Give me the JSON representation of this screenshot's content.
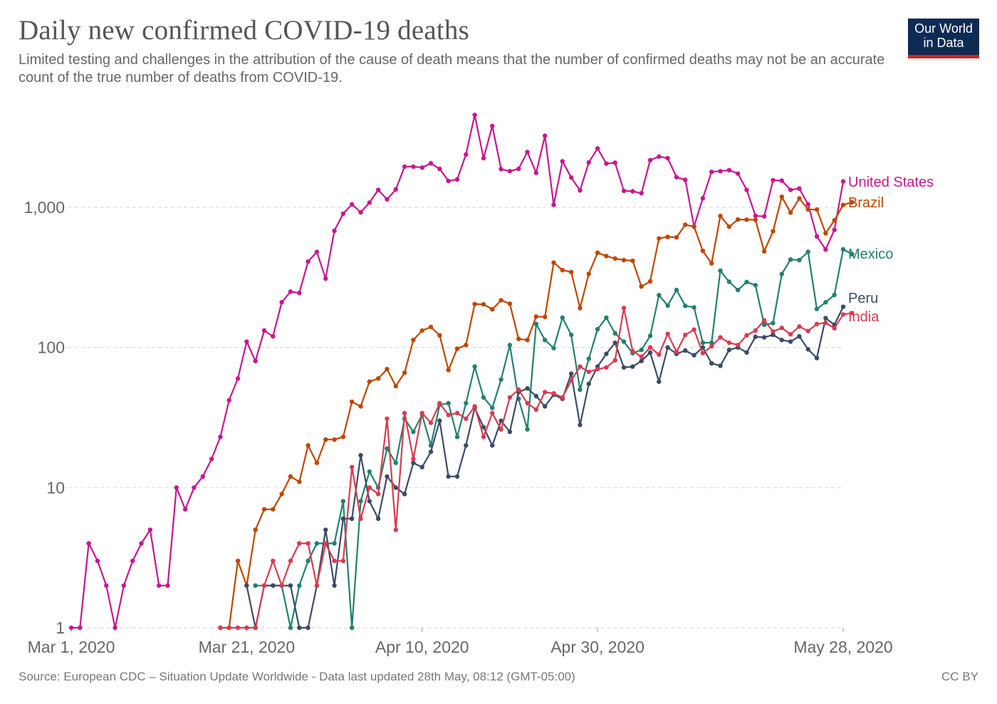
{
  "header": {
    "title": "Daily new confirmed COVID-19 deaths",
    "subtitle": "Limited testing and challenges in the attribution of the cause of death means that the number of confirmed deaths may not be an accurate count of the true number of deaths from COVID-19.",
    "logo_line1": "Our World",
    "logo_line2": "in Data"
  },
  "footer": {
    "source": "Source: European CDC – Situation Update Worldwide - Data last updated 28th May, 08:12 (GMT-05:00)",
    "license": "CC BY"
  },
  "chart_data": {
    "type": "line",
    "title": "Daily new confirmed COVID-19 deaths",
    "xlabel": "",
    "ylabel": "",
    "y_scale": "log",
    "ylim": [
      1,
      5000
    ],
    "x_start": "2020-03-01",
    "x_end": "2020-05-28",
    "x_ticks": [
      {
        "day": 0,
        "label": "Mar 1, 2020"
      },
      {
        "day": 20,
        "label": "Mar 21, 2020"
      },
      {
        "day": 40,
        "label": "Apr 10, 2020"
      },
      {
        "day": 60,
        "label": "Apr 30, 2020"
      },
      {
        "day": 88,
        "label": "May 28, 2020"
      }
    ],
    "y_ticks": [
      {
        "value": 1,
        "label": "1"
      },
      {
        "value": 10,
        "label": "10"
      },
      {
        "value": 100,
        "label": "100"
      },
      {
        "value": 1000,
        "label": "1,000"
      }
    ],
    "grid": true,
    "legend": "right-end-labels",
    "series": [
      {
        "name": "United States",
        "color": "#c8178f",
        "start_day": 0,
        "values": [
          1,
          1,
          4,
          3,
          2,
          1,
          2,
          3,
          4,
          5,
          2,
          2,
          10,
          7,
          10,
          12,
          16,
          23,
          42,
          60,
          110,
          80,
          132,
          120,
          210,
          250,
          245,
          410,
          480,
          310,
          680,
          900,
          1050,
          920,
          1080,
          1330,
          1140,
          1340,
          1950,
          1950,
          1920,
          2060,
          1880,
          1540,
          1580,
          2380,
          4560,
          2240,
          3800,
          1870,
          1810,
          1880,
          2480,
          1760,
          3240,
          1040,
          2130,
          1630,
          1320,
          2090,
          2630,
          2050,
          2080,
          1310,
          1300,
          1260,
          2170,
          2300,
          2240,
          1640,
          1570,
          730,
          1160,
          1790,
          1810,
          1840,
          1740,
          1330,
          870,
          860,
          1560,
          1550,
          1330,
          1360,
          1050,
          620,
          500,
          690,
          1530
        ]
      },
      {
        "name": "Brazil",
        "color": "#bf4700",
        "start_day": 17,
        "values": [
          1,
          1,
          3,
          2,
          5,
          7,
          7,
          9,
          12,
          11,
          20,
          15,
          22,
          22,
          23,
          41,
          38,
          57,
          60,
          70,
          53,
          66,
          113,
          132,
          140,
          122,
          69,
          98,
          104,
          204,
          203,
          187,
          217,
          205,
          115,
          113,
          166,
          165,
          403,
          356,
          345,
          191,
          335,
          474,
          449,
          431,
          420,
          415,
          272,
          296,
          600,
          615,
          610,
          751,
          727,
          488,
          398,
          867,
          727,
          818,
          816,
          815,
          485,
          674,
          1188,
          917,
          1156,
          966,
          963,
          653,
          807,
          1039,
          1086
        ]
      },
      {
        "name": "Mexico",
        "color": "#23806e",
        "start_day": 21,
        "values": [
          2,
          2,
          2,
          2,
          1,
          2,
          3,
          4,
          4,
          4,
          8,
          1,
          8,
          13,
          10,
          19,
          15,
          31,
          25,
          33,
          20,
          39,
          40,
          23,
          40,
          73,
          44,
          37,
          59,
          104,
          43,
          26,
          147,
          113,
          99,
          163,
          123,
          50,
          83,
          135,
          163,
          126,
          110,
          91,
          96,
          121,
          236,
          199,
          257,
          198,
          193,
          108,
          108,
          353,
          294,
          257,
          293,
          278,
          145,
          149,
          334,
          424,
          420,
          481,
          188,
          210,
          237,
          501,
          463
        ]
      },
      {
        "name": "Peru",
        "color": "#3b4a68",
        "start_day": 20,
        "values": [
          2,
          1,
          2,
          2,
          2,
          2,
          1,
          1,
          2,
          5,
          2,
          6,
          6,
          17,
          8,
          6,
          12,
          10,
          9,
          15,
          14,
          18,
          30,
          12,
          12,
          20,
          37,
          27,
          20,
          30,
          25,
          48,
          51,
          45,
          38,
          46,
          43,
          65,
          28,
          55,
          73,
          90,
          108,
          72,
          73,
          80,
          92,
          57,
          100,
          90,
          95,
          88,
          100,
          77,
          74,
          96,
          100,
          92,
          119,
          118,
          123,
          113,
          110,
          120,
          97,
          84,
          162,
          145,
          195
        ]
      },
      {
        "name": "India",
        "color": "#d73c50",
        "start_day": 17,
        "values": [
          1,
          1,
          1,
          1,
          1,
          2,
          3,
          2,
          3,
          4,
          4,
          2,
          4,
          3,
          3,
          14,
          6,
          10,
          9,
          31,
          5,
          34,
          16,
          34,
          29,
          40,
          33,
          34,
          31,
          38,
          23,
          34,
          26,
          44,
          50,
          40,
          36,
          48,
          47,
          44,
          58,
          73,
          67,
          70,
          72,
          81,
          191,
          94,
          86,
          100,
          89,
          125,
          93,
          123,
          134,
          91,
          102,
          118,
          108,
          104,
          122,
          132,
          156,
          130,
          138,
          124,
          141,
          131,
          147,
          150,
          137,
          172,
          176
        ]
      }
    ]
  }
}
